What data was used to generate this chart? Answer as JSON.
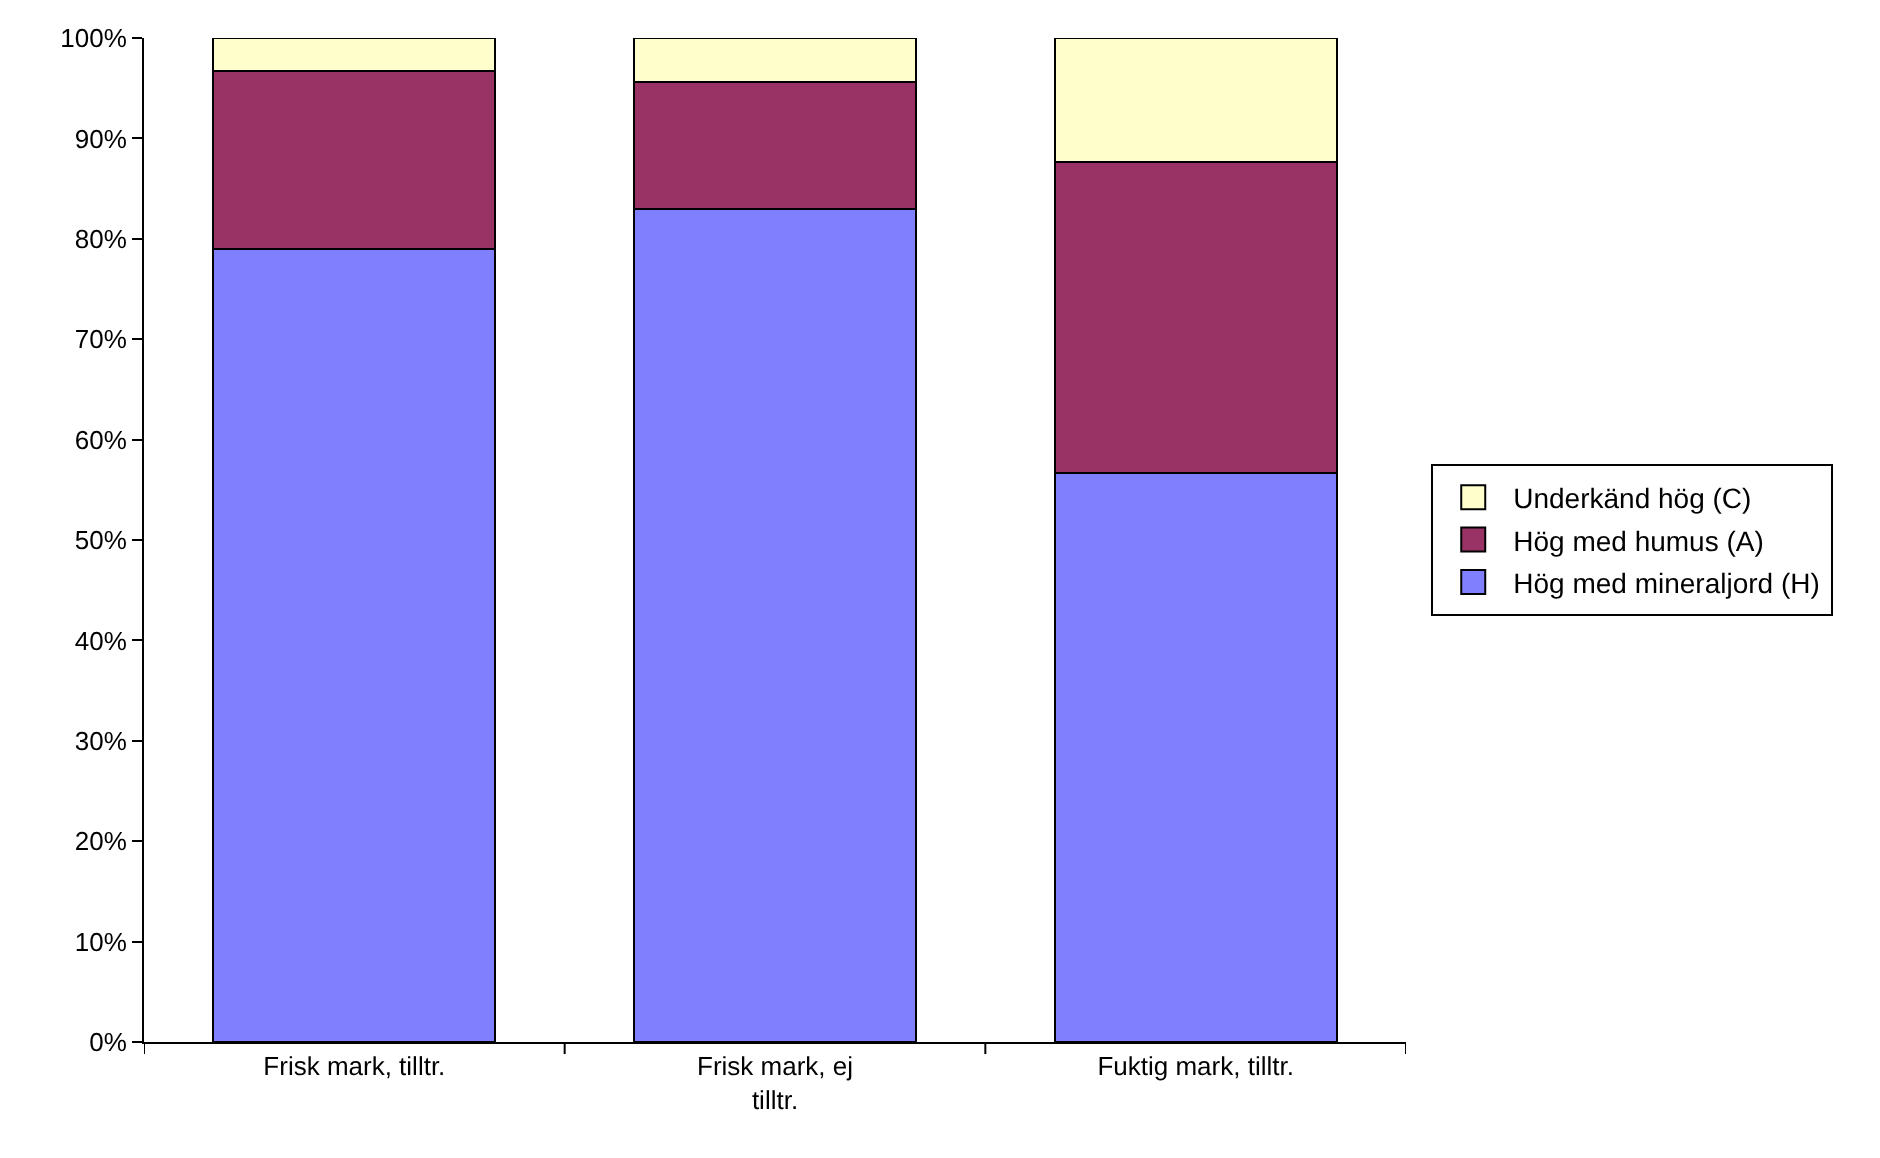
{
  "chart_data": {
    "type": "bar",
    "stacked": true,
    "categories": [
      "Frisk mark, tilltr.",
      "Frisk mark, ej tilltr.",
      "Fuktig mark, tilltr."
    ],
    "series": [
      {
        "name": "Hög med mineraljord (H)",
        "color": "#8080ff",
        "values": [
          79,
          83,
          56.7
        ]
      },
      {
        "name": "Hög med humus (A)",
        "color": "#993366",
        "values": [
          17.7,
          12.6,
          31
        ]
      },
      {
        "name": "Underkänd hög (C)",
        "color": "#ffffcc",
        "values": [
          3.3,
          4.4,
          12.3
        ]
      }
    ],
    "ylim": [
      0,
      100
    ],
    "yticks": [
      {
        "value": 0,
        "label": "0%"
      },
      {
        "value": 10,
        "label": "10%"
      },
      {
        "value": 20,
        "label": "20%"
      },
      {
        "value": 30,
        "label": "30%"
      },
      {
        "value": 40,
        "label": "40%"
      },
      {
        "value": 50,
        "label": "50%"
      },
      {
        "value": 60,
        "label": "60%"
      },
      {
        "value": 70,
        "label": "70%"
      },
      {
        "value": 80,
        "label": "80%"
      },
      {
        "value": 90,
        "label": "90%"
      },
      {
        "value": 100,
        "label": "100%"
      }
    ],
    "grid": false,
    "legend": "right"
  }
}
